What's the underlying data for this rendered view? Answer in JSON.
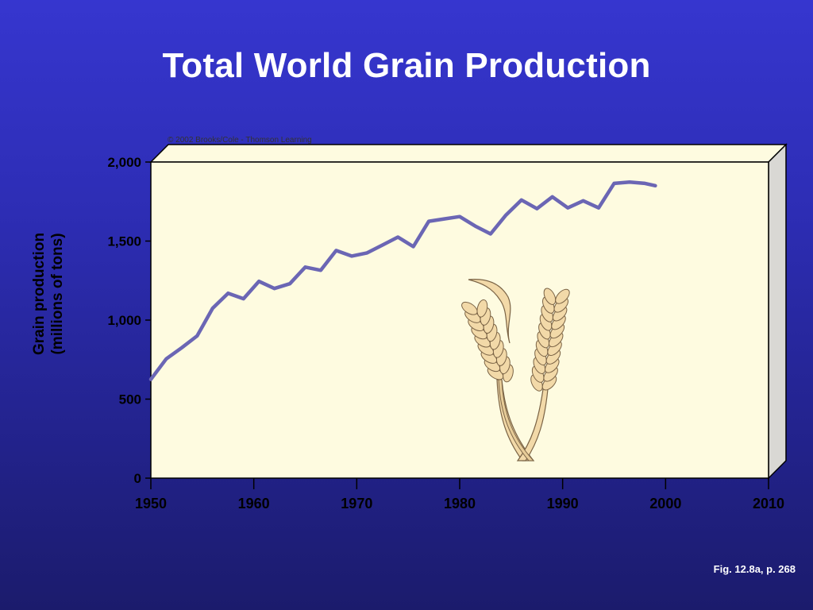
{
  "slide": {
    "title": "Total World Grain Production",
    "figure_reference": "Fig. 12.8a, p. 268",
    "copyright": "© 2002 Brooks/Cole - Thomson Learning"
  },
  "colors": {
    "background": "#2f2fb8",
    "plot_face": "#fefbe0",
    "plot_side": "#d9d8d4",
    "line": "#6b66b4",
    "wheat_fill": "#f2d9a8",
    "wheat_stroke": "#7a6345"
  },
  "chart_data": {
    "type": "line",
    "title": "Total World Grain Production",
    "xlabel": "",
    "ylabel": "Grain production\n(millions of tons)",
    "ylabel_lines": [
      "Grain production",
      "(millions of tons)"
    ],
    "xlim": [
      1950,
      2010
    ],
    "ylim": [
      0,
      2000
    ],
    "x_ticks": [
      1950,
      1960,
      1970,
      1980,
      1990,
      2000,
      2010
    ],
    "x_tick_labels": [
      "1950",
      "1960",
      "1970",
      "1980",
      "1990",
      "2000",
      "2010"
    ],
    "y_ticks": [
      0,
      500,
      1000,
      1500,
      2000
    ],
    "y_tick_labels": [
      "0",
      "500",
      "1,000",
      "1,500",
      "2,000"
    ],
    "grid": false,
    "legend": "none",
    "decoration": "wheat-icon",
    "series": [
      {
        "x": [
          1950,
          1951.5,
          1953,
          1954.5,
          1956,
          1957.5,
          1959,
          1960.5,
          1962,
          1963.5,
          1965,
          1966.5,
          1968,
          1969.5,
          1971,
          1972.5,
          1974,
          1975.5,
          1977,
          1978.5,
          1980,
          1981.5,
          1983,
          1984.5,
          1986,
          1987.5,
          1989,
          1990.5,
          1992,
          1993.5,
          1995,
          1996.5,
          1998,
          1999
        ],
        "y": [
          625,
          755,
          825,
          900,
          1075,
          1170,
          1135,
          1245,
          1200,
          1230,
          1335,
          1315,
          1440,
          1405,
          1425,
          1475,
          1525,
          1465,
          1625,
          1640,
          1655,
          1595,
          1545,
          1665,
          1760,
          1705,
          1780,
          1710,
          1755,
          1710,
          1865,
          1873,
          1865,
          1850
        ]
      }
    ]
  }
}
